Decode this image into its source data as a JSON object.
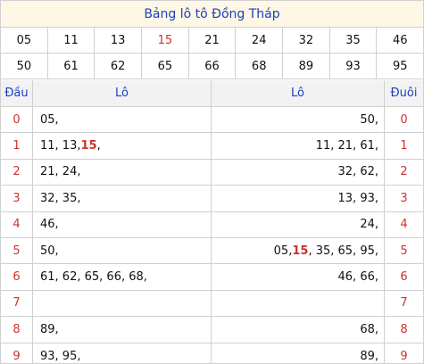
{
  "title": "Bảng lô tô Đồng Tháp",
  "numbers_row1": [
    "05",
    "11",
    "13",
    "15",
    "21",
    "24",
    "32",
    "35",
    "46"
  ],
  "numbers_row2": [
    "50",
    "61",
    "62",
    "65",
    "66",
    "68",
    "89",
    "93",
    "95"
  ],
  "highlight_number": "15",
  "headers": {
    "dau": "Đầu",
    "lo_left": "Lô",
    "lo_right": "Lô",
    "duoi": "Đuôi"
  },
  "rows": [
    {
      "dau": "0",
      "lo_left": "05,",
      "lo_right": "50,",
      "duoi": "0"
    },
    {
      "dau": "1",
      "lo_left_parts": [
        "11, 13, ",
        "15",
        ","
      ],
      "lo_right": "11, 21, 61,",
      "duoi": "1"
    },
    {
      "dau": "2",
      "lo_left": "21, 24,",
      "lo_right": "32, 62,",
      "duoi": "2"
    },
    {
      "dau": "3",
      "lo_left": "32, 35,",
      "lo_right": "13, 93,",
      "duoi": "3"
    },
    {
      "dau": "4",
      "lo_left": "46,",
      "lo_right": "24,",
      "duoi": "4"
    },
    {
      "dau": "5",
      "lo_left": "50,",
      "lo_right_parts": [
        "05, ",
        "15",
        ", 35, 65, 95,"
      ],
      "duoi": "5"
    },
    {
      "dau": "6",
      "lo_left": "61, 62, 65, 66, 68,",
      "lo_right": "46, 66,",
      "duoi": "6"
    },
    {
      "dau": "7",
      "lo_left": "",
      "lo_right": "",
      "duoi": "7"
    },
    {
      "dau": "8",
      "lo_left": "89,",
      "lo_right": "68,",
      "duoi": "8"
    },
    {
      "dau": "9",
      "lo_left": "93, 95,",
      "lo_right": "89,",
      "duoi": "9"
    }
  ],
  "colors": {
    "accent_blue": "#1a3fbf",
    "highlight_red": "#d0312d",
    "title_bg": "#fff7e6"
  }
}
